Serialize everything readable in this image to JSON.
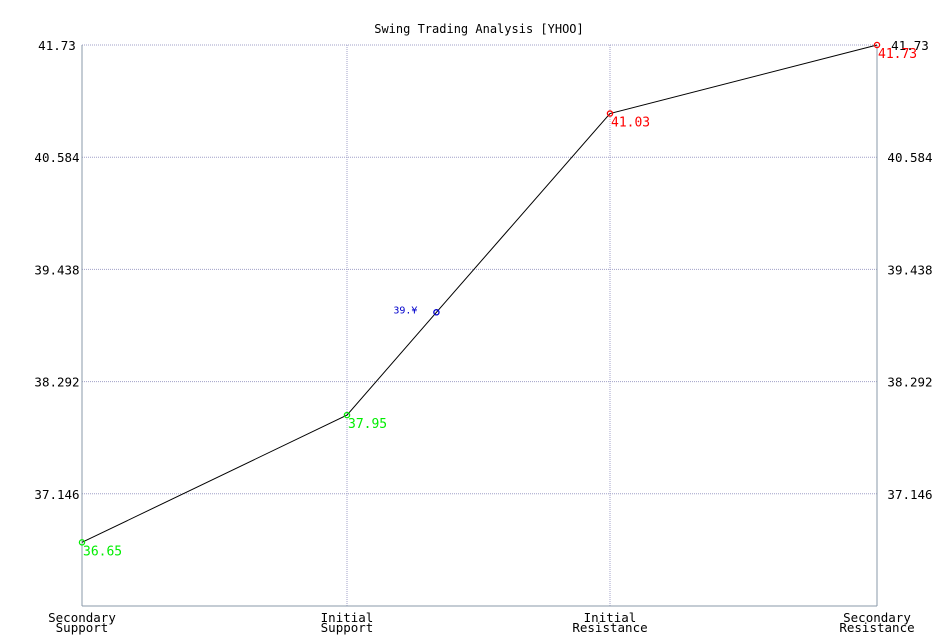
{
  "chart_data": {
    "type": "line",
    "title": "Swing Trading Analysis [YHOO]",
    "xlabel": "",
    "ylabel": "",
    "categories": [
      "Secondary Support",
      "Initial Support",
      "Initial Resistance",
      "Secondary Resistance"
    ],
    "category_lines": [
      [
        "Secondary",
        "Support"
      ],
      [
        "Initial",
        "Support"
      ],
      [
        "Initial",
        "Resistance"
      ],
      [
        "Secondary",
        "Resistance"
      ]
    ],
    "ylim": [
      36.0,
      41.73
    ],
    "yticks": [
      "41.73",
      "40.584",
      "39.438",
      "38.292",
      "37.146"
    ],
    "ytick_values": [
      41.73,
      40.584,
      39.438,
      38.292,
      37.146
    ],
    "grid": true,
    "points": [
      {
        "x": 0,
        "y": 36.65,
        "label": "36.65",
        "color": "#00ee00"
      },
      {
        "x": 1,
        "y": 37.95,
        "label": "37.95",
        "color": "#00ee00"
      },
      {
        "x": 1.34,
        "y": 39.0,
        "label": "39.¥",
        "color": "#0000cc"
      },
      {
        "x": 2,
        "y": 41.03,
        "label": "41.03",
        "color": "#ff0000"
      },
      {
        "x": 3,
        "y": 41.73,
        "label": "41.73",
        "color": "#ff0000"
      }
    ],
    "colors": {
      "line": "#000000",
      "grid": "#a0a0c8",
      "axis": "#8899aa",
      "support": "#00ee00",
      "resistance": "#ff0000",
      "quote": "#0000cc"
    }
  }
}
